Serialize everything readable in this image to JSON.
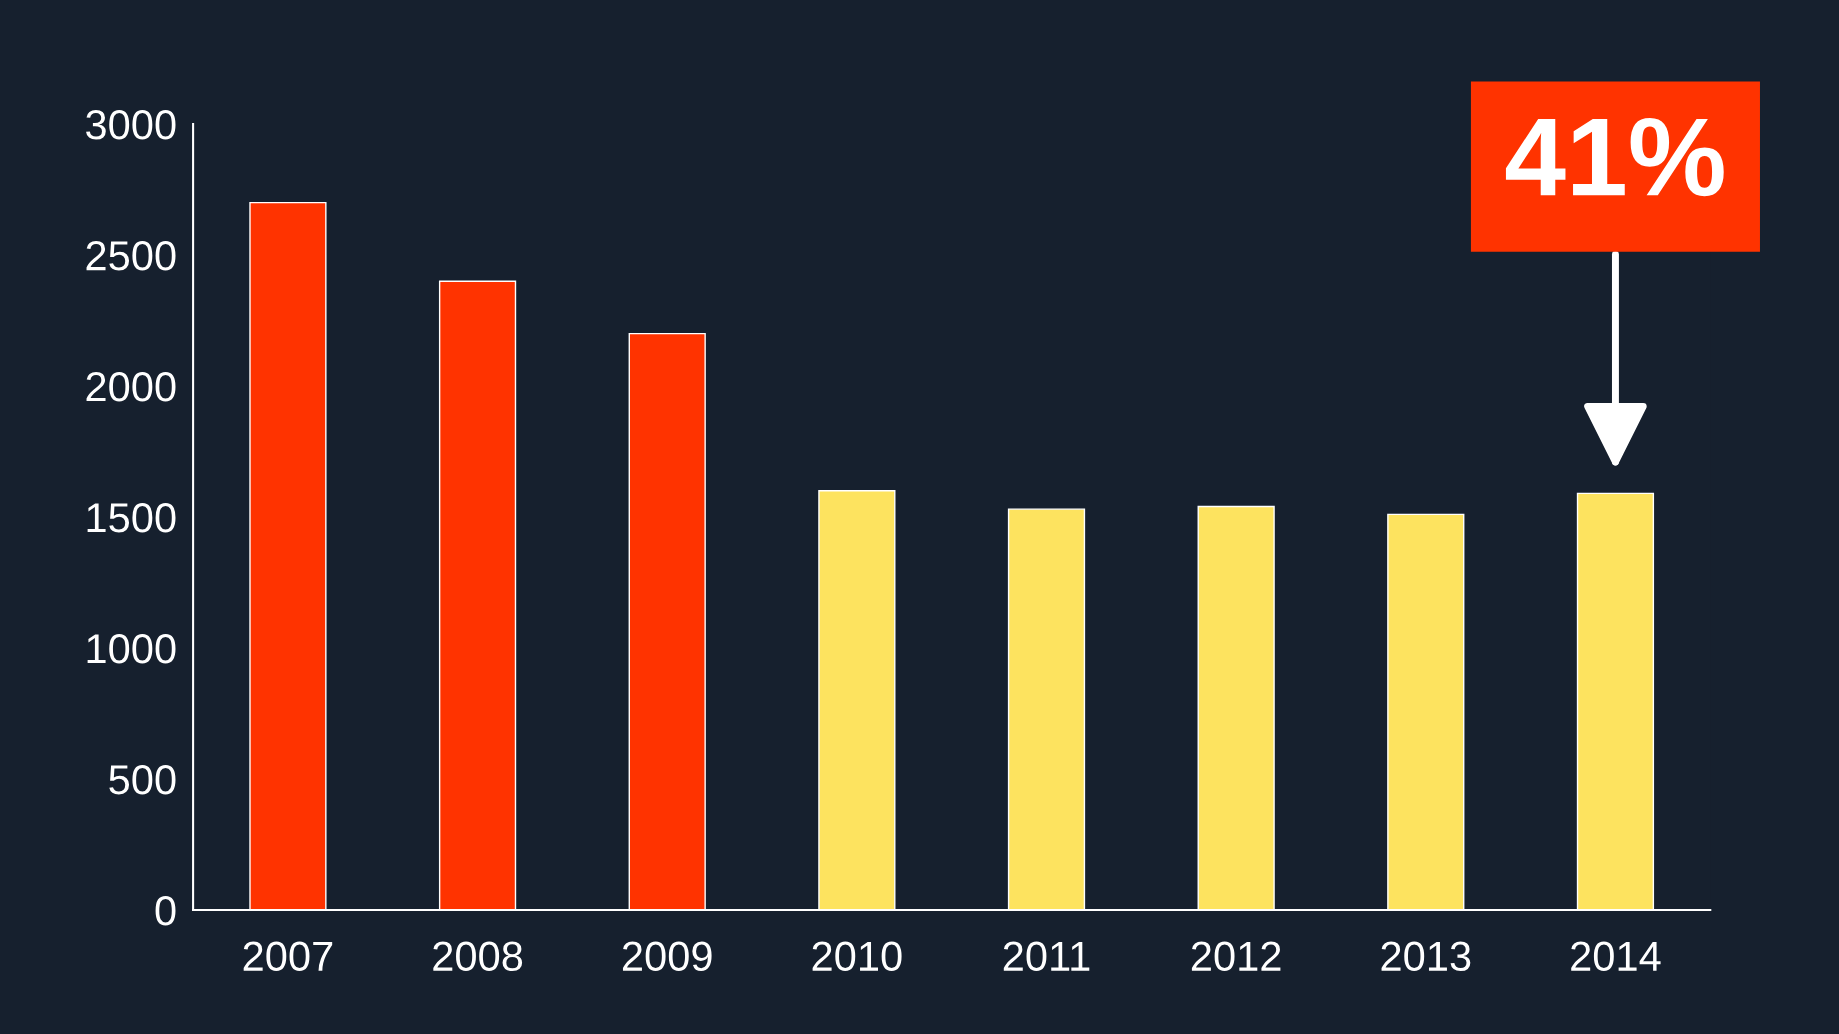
{
  "chart_data": {
    "type": "bar",
    "categories": [
      "2007",
      "2008",
      "2009",
      "2010",
      "2011",
      "2012",
      "2013",
      "2014"
    ],
    "values": [
      2700,
      2400,
      2200,
      1600,
      1530,
      1540,
      1510,
      1590
    ],
    "colors": [
      "#ff3300",
      "#ff3300",
      "#ff3300",
      "#fde35f",
      "#fde35f",
      "#fde35f",
      "#fde35f",
      "#fde35f"
    ],
    "ylim": [
      0,
      3000
    ],
    "yticks": [
      0,
      500,
      1000,
      1500,
      2000,
      2500,
      3000
    ],
    "annotations": [
      {
        "text": "41%",
        "x": "2014",
        "y": 1590
      }
    ],
    "grid": false,
    "legend": false
  }
}
